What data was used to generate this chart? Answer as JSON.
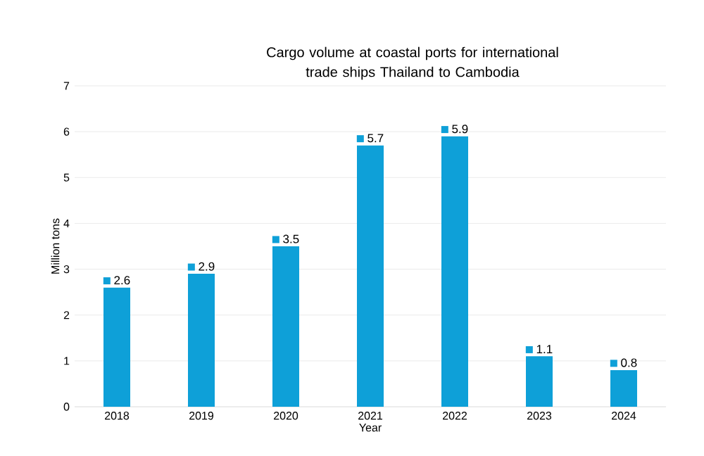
{
  "chart_data": {
    "type": "bar",
    "title": "Cargo volume at coastal ports for international trade ships Thailand to Cambodia",
    "xlabel": "Year",
    "ylabel": "Million tons",
    "categories": [
      "2018",
      "2019",
      "2020",
      "2021",
      "2022",
      "2023",
      "2024"
    ],
    "values": [
      2.6,
      2.9,
      3.5,
      5.7,
      5.9,
      1.1,
      0.8
    ],
    "color": "#0ea0d8",
    "data_labels": true,
    "grid": "y",
    "ylim": [
      0,
      7
    ],
    "yticks": [
      0,
      1,
      2,
      3,
      4,
      5,
      6,
      7
    ]
  }
}
